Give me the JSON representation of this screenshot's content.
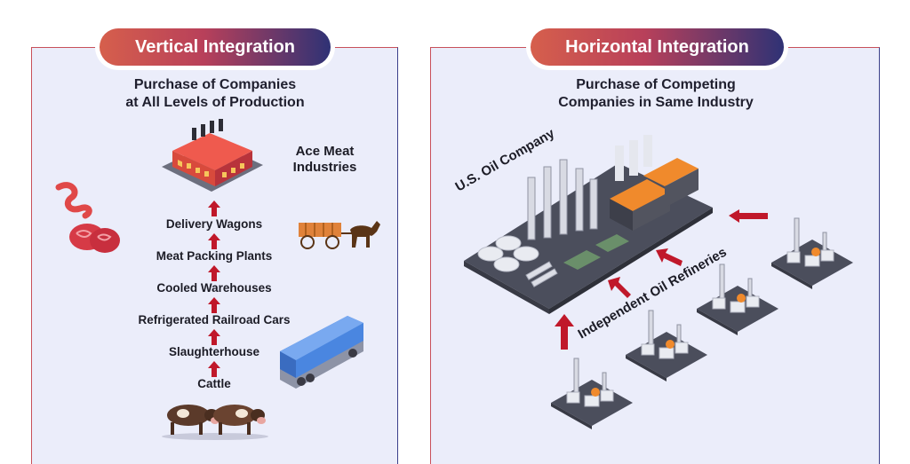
{
  "left": {
    "heading": "Vertical Integration",
    "subtitle_line1": "Purchase of Companies",
    "subtitle_line2": "at All Levels of Production",
    "company_line1": "Ace Meat",
    "company_line2": "Industries",
    "steps": [
      "Delivery Wagons",
      "Meat Packing Plants",
      "Cooled Warehouses",
      "Refrigerated Railroad Cars",
      "Slaughterhouse",
      "Cattle"
    ]
  },
  "right": {
    "heading": "Horizontal Integration",
    "subtitle_line1": "Purchase of Competing",
    "subtitle_line2": "Companies in Same Industry",
    "company_label": "U.S. Oil Company",
    "refineries_label": "Independent Oil Refineries"
  },
  "colors": {
    "arrow": "#c0182a",
    "accent_red": "#d65f4c",
    "accent_navy": "#2f3275",
    "panel_bg": "#ebedfa"
  }
}
